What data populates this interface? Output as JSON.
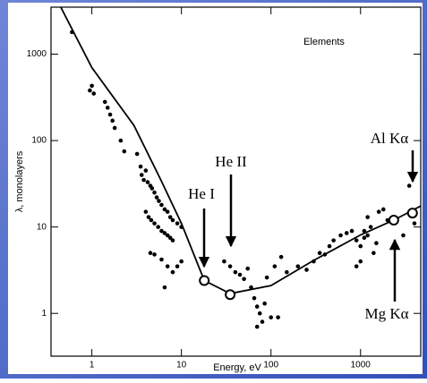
{
  "chart_data": {
    "type": "scatter",
    "xlabel": "Energy, eV",
    "ylabel": "λ, monolayers",
    "annotations": [
      "Elements",
      "He I",
      "He II",
      "Al Kα",
      "Mg Kα"
    ],
    "log_x": true,
    "log_y": true,
    "xlim": [
      0.35,
      4700
    ],
    "ylim": [
      0.32,
      3500
    ],
    "xticks": [
      1,
      10,
      100,
      1000
    ],
    "yticks": [
      1,
      10,
      100,
      1000
    ],
    "series": [
      {
        "mode": "line",
        "color": "#000000",
        "x": [
          0.45,
          1,
          2.95,
          5.9,
          10,
          18,
          35,
          100,
          300,
          1000,
          2350,
          4700
        ],
        "values": [
          3500,
          700,
          150,
          35,
          11,
          2.4,
          1.7,
          2.1,
          4.1,
          8.1,
          12,
          17.5
        ]
      },
      {
        "mode": "markers",
        "color": "#000000",
        "x": [
          0.6,
          0.95,
          1.0,
          1.05,
          1.4,
          1.5,
          1.6,
          1.7,
          1.8,
          2.1,
          2.3,
          3.2,
          3.5,
          3.6,
          3.8,
          4,
          4.2,
          4.5,
          4.7,
          5,
          5.3,
          5.6,
          6,
          6.5,
          7,
          7.5,
          8,
          9,
          10,
          4,
          4.3,
          4.6,
          5,
          5.5,
          6,
          6.5,
          7,
          7.5,
          8,
          4.5,
          5,
          6,
          7,
          8,
          6.5,
          9,
          10,
          30,
          35,
          40,
          45,
          50,
          55,
          60,
          65,
          70,
          75,
          80,
          70,
          85,
          90,
          100,
          120,
          110,
          130,
          150,
          200,
          250,
          300,
          350,
          400,
          450,
          500,
          600,
          700,
          800,
          900,
          1000,
          1100,
          1200,
          1300,
          1400,
          1500,
          1000,
          900,
          1200,
          1600,
          1800,
          2000,
          2500,
          3000,
          3500,
          4000,
          1100
        ],
        "values": [
          1800,
          380,
          430,
          350,
          280,
          240,
          200,
          170,
          140,
          100,
          75,
          70,
          50,
          40,
          35,
          45,
          33,
          30,
          28,
          25,
          22,
          20,
          18,
          16,
          15,
          13,
          12,
          11,
          10,
          15,
          13,
          12,
          11,
          10,
          9,
          8.5,
          8,
          7.5,
          7,
          5,
          4.8,
          4.2,
          3.5,
          3,
          2,
          3.5,
          4,
          4,
          3.5,
          3,
          2.8,
          2.5,
          3.3,
          2,
          1.5,
          1.2,
          1,
          0.8,
          0.7,
          1.3,
          2.6,
          0.9,
          0.9,
          3.5,
          4.5,
          3,
          3.5,
          3.2,
          4,
          5,
          4.8,
          6,
          7,
          8,
          8.5,
          9,
          7,
          6,
          7.5,
          8,
          10,
          5,
          6.5,
          4,
          3.5,
          13,
          15,
          16,
          12,
          12,
          8,
          30,
          11,
          9
        ]
      },
      {
        "mode": "open-markers",
        "color": "#000000",
        "x": [
          18,
          35,
          2350,
          3800
        ],
        "values": [
          2.4,
          1.65,
          12,
          14.5
        ]
      }
    ]
  }
}
